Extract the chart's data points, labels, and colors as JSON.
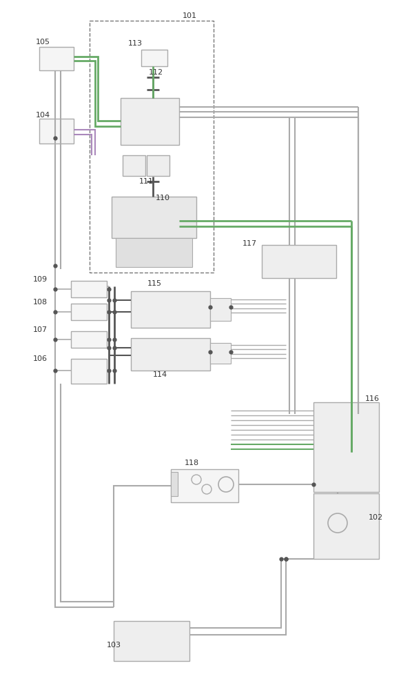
{
  "bg": "#ffffff",
  "lc": "#aaaaaa",
  "dc": "#555555",
  "gc": "#66aa66",
  "pc": "#aa88bb",
  "bf": "#f0f0f0",
  "be": "#aaaaaa"
}
